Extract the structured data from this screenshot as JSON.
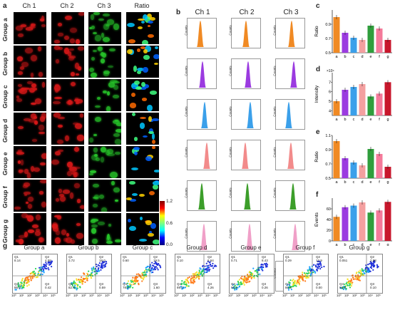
{
  "panel_labels": {
    "a": "a",
    "b": "b",
    "c": "c",
    "d": "d",
    "e": "e",
    "f": "f",
    "g": "g"
  },
  "panel_a": {
    "channels": [
      "Ch 1",
      "Ch 2",
      "Ch 3",
      "Ratio"
    ],
    "groups": [
      "Group a",
      "Group b",
      "Group c",
      "Group d",
      "Group e",
      "Group f",
      "Group g"
    ],
    "colorbar": {
      "max": "1.2",
      "mid": "0.6",
      "min": "0.0"
    }
  },
  "panel_b": {
    "channels": [
      "Ch 1",
      "Ch 2",
      "Ch 3"
    ],
    "ylabel": "Counts",
    "row_colors": [
      "#f08a24",
      "#9b3be0",
      "#3ba0ea",
      "#f28b8b",
      "#3c9e2a",
      "#f0a0c8",
      "#e23b3b"
    ]
  },
  "colors": {
    "a": "#f08a24",
    "b": "#9b3be0",
    "c": "#3ba0ea",
    "d": "#f4a0a0",
    "e": "#2f9e3c",
    "f": "#f47a9a",
    "g": "#c8172c"
  },
  "chart_data": [
    {
      "id": "c",
      "type": "bar",
      "categories": [
        "a",
        "b",
        "c",
        "d",
        "e",
        "f",
        "g"
      ],
      "values": [
        1.0,
        0.78,
        0.71,
        0.68,
        0.88,
        0.84,
        0.68
      ],
      "ylabel": "Ratio",
      "ylim": [
        0.5,
        1.1
      ],
      "yticks": [
        "0.5",
        "0.7",
        "0.9"
      ],
      "ytick_values": [
        0.5,
        0.7,
        0.9
      ]
    },
    {
      "id": "d",
      "type": "bar",
      "categories": [
        "a",
        "b",
        "c",
        "d",
        "e",
        "f",
        "g"
      ],
      "values": [
        5.0,
        6.2,
        6.5,
        6.8,
        5.5,
        5.8,
        7.0
      ],
      "ylabel": "Intensity",
      "ylim": [
        3.5,
        8
      ],
      "multiplier": "×10⁴",
      "yticks": [
        "4",
        "5",
        "6",
        "7"
      ],
      "ytick_values": [
        4,
        5,
        6,
        7
      ]
    },
    {
      "id": "e",
      "type": "bar",
      "categories": [
        "a",
        "b",
        "c",
        "d",
        "e",
        "f",
        "g"
      ],
      "values": [
        1.02,
        0.78,
        0.72,
        0.68,
        0.91,
        0.84,
        0.66
      ],
      "ylabel": "Ratio",
      "ylim": [
        0.5,
        1.1
      ],
      "yticks": [
        "0.5",
        "0.7",
        "0.9",
        "1.1"
      ],
      "ytick_values": [
        0.5,
        0.7,
        0.9,
        1.1
      ]
    },
    {
      "id": "f",
      "type": "bar",
      "categories": [
        "a",
        "b",
        "c",
        "d",
        "e",
        "f",
        "g"
      ],
      "values": [
        45,
        63,
        66,
        72,
        53,
        57,
        73
      ],
      "ylabel": "Events",
      "ylim": [
        0,
        80
      ],
      "yticks": [
        "0",
        "20",
        "40",
        "60"
      ],
      "ytick_values": [
        0,
        20,
        40,
        60
      ]
    }
  ],
  "panel_g": {
    "plots": [
      {
        "title": "Group a",
        "q1": "Q1",
        "q1v": "8.14",
        "q2": "Q2",
        "q2v": "4.58",
        "q4": "Q4",
        "q4v": "86.9",
        "q3": "Q3",
        "q3v": "0.42"
      },
      {
        "title": "Group b",
        "q1": "Q1",
        "q1v": "3.72",
        "q2": "Q2",
        "q2v": "18.0",
        "q4": "Q4",
        "q4v": "82.9",
        "q3": "Q3",
        "q3v": "0.59"
      },
      {
        "title": "Group c",
        "q1": "Q1",
        "q1v": "0.60",
        "q2": "Q2",
        "q2v": "19.5",
        "q4": "Q4",
        "q4v": "78.3",
        "q3": "Q3",
        "q3v": "1.60"
      },
      {
        "title": "Group d",
        "q1": "Q1",
        "q1v": "0.10",
        "q2": "Q2",
        "q2v": "6.64",
        "q4": "Q4",
        "q4v": "89.0",
        "q3": "Q3",
        "q3v": "4.26"
      },
      {
        "title": "Group e",
        "q1": "Q1",
        "q1v": "0.71",
        "q2": "Q2",
        "q2v": "8.43",
        "q4": "Q4",
        "q4v": "90.6",
        "q3": "Q3",
        "q3v": "0.26"
      },
      {
        "title": "Group f",
        "q1": "Q1",
        "q1v": "0.29",
        "q2": "Q2",
        "q2v": "12.9",
        "q4": "Q4",
        "q4v": "86.8",
        "q3": "Q3",
        "q3v": "0.00"
      },
      {
        "title": "Group g",
        "q1": "Q1",
        "q1v": "0.051",
        "q2": "Q2",
        "q2v": "2.98",
        "q4": "Q4",
        "q4v": "96.8",
        "q3": "Q3",
        "q3v": "0.10"
      }
    ],
    "xticks": [
      "10⁰",
      "10¹",
      "10²",
      "10³",
      "10⁴",
      "10⁵"
    ]
  }
}
